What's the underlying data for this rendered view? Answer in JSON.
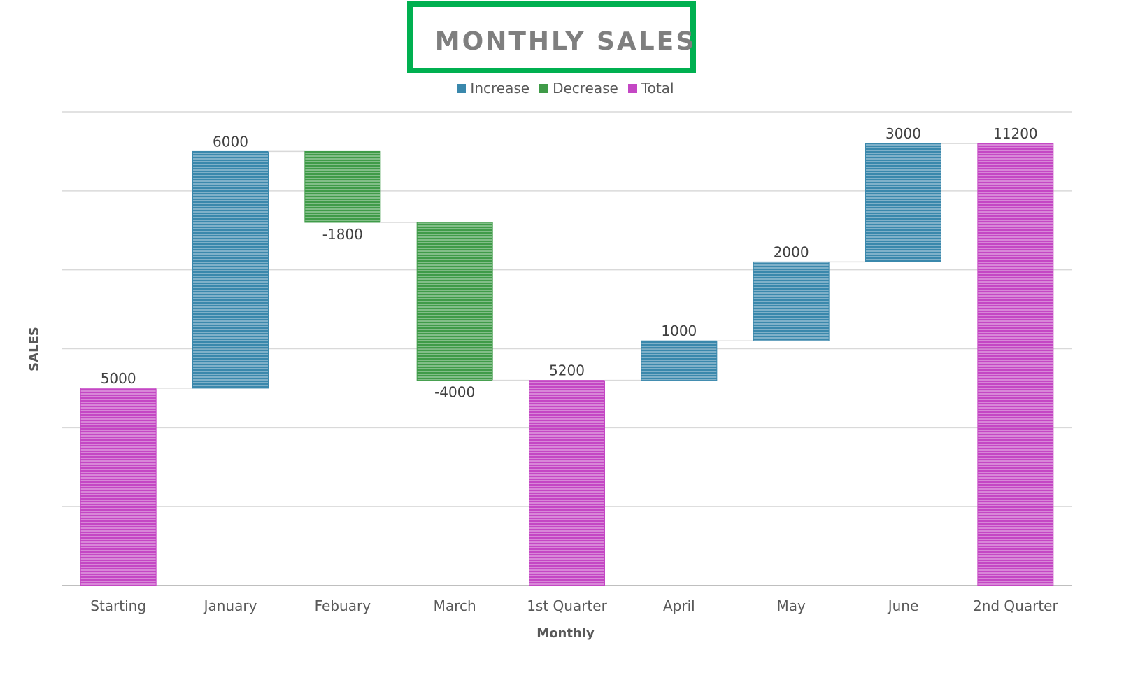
{
  "chart_data": {
    "type": "waterfall",
    "title": "MONTHLY SALES",
    "xlabel": "Monthly",
    "ylabel": "SALES",
    "ylim": [
      0,
      12000
    ],
    "ytick_step": 2000,
    "ytick_labels_shown": false,
    "grid": true,
    "legend_placement": "top",
    "legend": [
      "Increase",
      "Decrease",
      "Total"
    ],
    "colors": {
      "Increase": "#3a88ac",
      "Decrease": "#3f9b48",
      "Total": "#c447c4",
      "title_border": "#00b050"
    },
    "categories": [
      "Starting",
      "January",
      "Febuary",
      "March",
      "1st Quarter",
      "April",
      "May",
      "June",
      "2nd Quarter"
    ],
    "values": [
      5000,
      6000,
      -1800,
      -4000,
      5200,
      1000,
      2000,
      3000,
      11200
    ],
    "kinds": [
      "Total",
      "Increase",
      "Decrease",
      "Decrease",
      "Total",
      "Increase",
      "Increase",
      "Increase",
      "Total"
    ]
  }
}
